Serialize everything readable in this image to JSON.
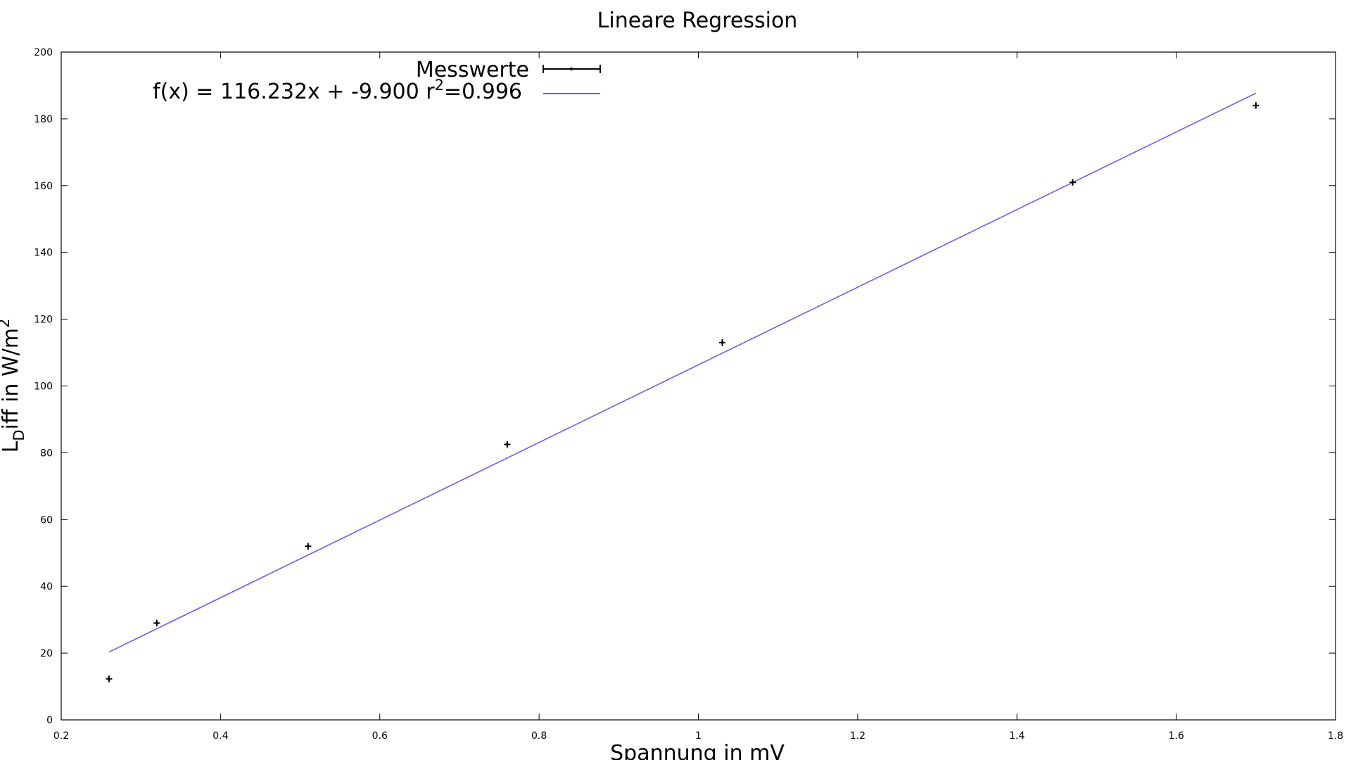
{
  "chart_data": {
    "type": "scatter",
    "title": "Lineare Regression",
    "xlabel": "Spannung in mV",
    "ylabel": {
      "main": "L",
      "sub": "D",
      "rest": "iff in W/m",
      "sup": "2"
    },
    "xlim": [
      0.2,
      1.8
    ],
    "ylim": [
      0,
      200
    ],
    "xticks": [
      0.2,
      0.4,
      0.6,
      0.8,
      1,
      1.2,
      1.4,
      1.6,
      1.8
    ],
    "xtick_labels": [
      "0.2",
      "0.4",
      "0.6",
      "0.8",
      "1",
      "1.2",
      "1.4",
      "1.6",
      "1.8"
    ],
    "yticks": [
      0,
      20,
      40,
      60,
      80,
      100,
      120,
      140,
      160,
      180,
      200
    ],
    "ytick_labels": [
      "0",
      "20",
      "40",
      "60",
      "80",
      "100",
      "120",
      "140",
      "160",
      "180",
      "200"
    ],
    "grid": false,
    "legend_position": "top-left",
    "series": [
      {
        "name": "Messwerte",
        "kind": "errorbar-points",
        "color": "#000000",
        "x": [
          0.26,
          0.32,
          0.51,
          0.76,
          1.03,
          1.47,
          1.7
        ],
        "y": [
          12.3,
          29.0,
          52.0,
          82.5,
          113.0,
          161.0,
          184.0
        ],
        "xerr": 0.004,
        "yerr": 1.0
      },
      {
        "name_parts": {
          "pre": "f(x) = 116.232x + -9.900   r",
          "sup": "2",
          "post": "=0.996"
        },
        "kind": "fit-line",
        "color": "#6a5cff",
        "slope": 116.232,
        "intercept": -9.9,
        "x_range": [
          0.26,
          1.7
        ]
      }
    ]
  }
}
